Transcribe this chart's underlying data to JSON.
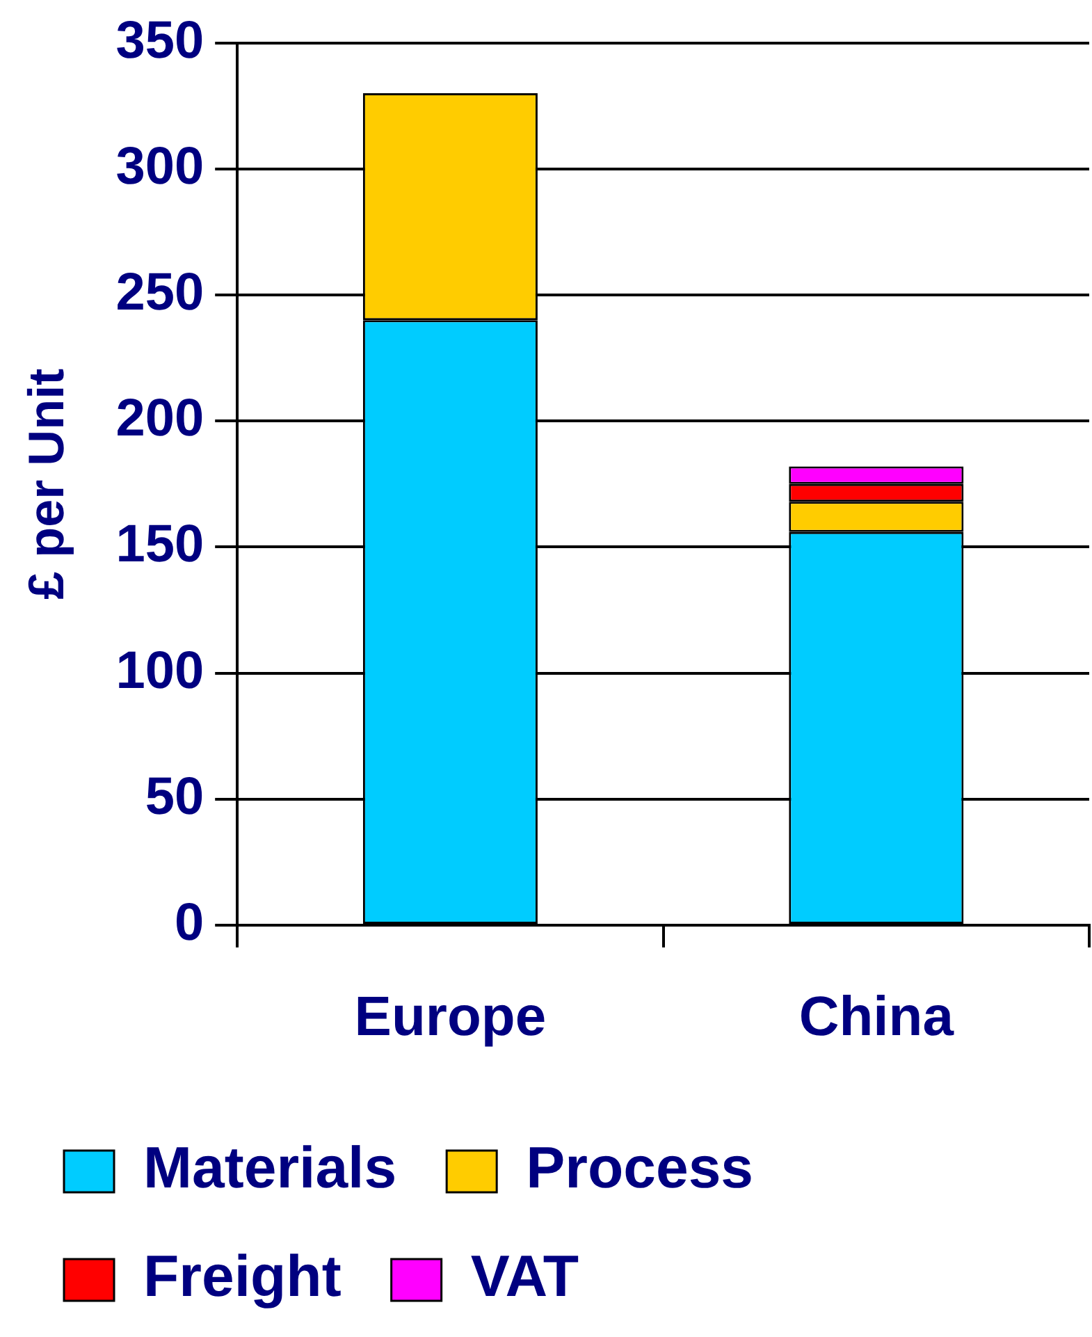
{
  "chart_data": {
    "type": "bar",
    "stacked": true,
    "ylabel": "£ per Unit",
    "categories": [
      "Europe",
      "China"
    ],
    "series": [
      {
        "name": "Materials",
        "color": "#00ccff",
        "values": [
          240,
          156
        ]
      },
      {
        "name": "Process",
        "color": "#ffcc00",
        "values": [
          90,
          12
        ]
      },
      {
        "name": "Freight",
        "color": "#ff0000",
        "values": [
          null,
          7
        ]
      },
      {
        "name": "VAT",
        "color": "#ff00ff",
        "values": [
          null,
          7
        ]
      }
    ],
    "ylim": [
      0,
      350
    ],
    "yticks": [
      0,
      50,
      100,
      150,
      200,
      250,
      300,
      350
    ],
    "grid": "y",
    "legend": "bottom"
  }
}
